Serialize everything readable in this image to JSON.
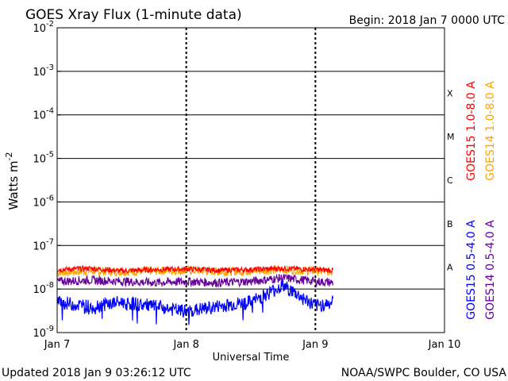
{
  "chart_data": {
    "type": "line",
    "title": "GOES Xray Flux (1-minute data)",
    "begin_label": "Begin:  2018 Jan 7 0000 UTC",
    "updated_label": "Updated 2018 Jan  9 03:26:12 UTC",
    "credit_label": "NOAA/SWPC Boulder, CO USA",
    "xlabel": "Universal Time",
    "ylabel": "Watts m",
    "ylabel_exponent": "-2",
    "y_scale": "log",
    "ylim_exponent": [
      -9,
      -2
    ],
    "y_tick_exponents": [
      "-9",
      "-8",
      "-7",
      "-6",
      "-5",
      "-4",
      "-3",
      "-2"
    ],
    "y_tick_base": "10",
    "x_ticks": [
      {
        "label": "Jan 7",
        "day": 0
      },
      {
        "label": "Jan 8",
        "day": 1
      },
      {
        "label": "Jan 9",
        "day": 2
      },
      {
        "label": "Jan 10",
        "day": 3
      }
    ],
    "xlim_days": [
      0,
      3
    ],
    "grid": "horizontal lines at each decade; dashed vertical lines at day boundaries",
    "flare_classes": [
      {
        "label": "A",
        "exponent": -8
      },
      {
        "label": "B",
        "exponent": -7
      },
      {
        "label": "C",
        "exponent": -6
      },
      {
        "label": "M",
        "exponent": -5
      },
      {
        "label": "X",
        "exponent": -4
      }
    ],
    "legend_placement": "right side, vertical",
    "series": [
      {
        "name": "GOES15 1.0-8.0 A",
        "color": "#ff0000",
        "x_days": [
          0,
          0.25,
          0.5,
          0.75,
          1.0,
          1.25,
          1.5,
          1.75,
          2.0,
          2.14
        ],
        "y": [
          2.8e-08,
          3e-08,
          2.6e-08,
          2.8e-08,
          2.9e-08,
          2.7e-08,
          2.8e-08,
          3e-08,
          2.8e-08,
          2.7e-08
        ]
      },
      {
        "name": "GOES14 1.0-8.0 A",
        "color": "#ffa500",
        "x_days": [
          0,
          0.25,
          0.5,
          0.75,
          1.0,
          1.25,
          1.5,
          1.75,
          2.0,
          2.14
        ],
        "y": [
          2.4e-08,
          2.6e-08,
          2.5e-08,
          2.6e-08,
          2.7e-08,
          2.5e-08,
          2.6e-08,
          2.8e-08,
          2.6e-08,
          2.5e-08
        ]
      },
      {
        "name": "GOES15 0.5-4.0 A",
        "color": "#0000ff",
        "x_days": [
          0,
          0.25,
          0.5,
          0.75,
          1.0,
          1.25,
          1.5,
          1.75,
          2.0,
          2.14
        ],
        "y": [
          5e-09,
          4e-09,
          5e-09,
          4e-09,
          3e-09,
          4e-09,
          5e-09,
          1.2e-08,
          4e-09,
          5e-09
        ]
      },
      {
        "name": "GOES14 0.5-4.0 A",
        "color": "#660099",
        "x_days": [
          0,
          0.25,
          0.5,
          0.75,
          1.0,
          1.25,
          1.5,
          1.75,
          2.0,
          2.14
        ],
        "y": [
          1.5e-08,
          1.6e-08,
          1.5e-08,
          1.4e-08,
          1.5e-08,
          1.4e-08,
          1.5e-08,
          1.8e-08,
          1.5e-08,
          1.4e-08
        ]
      }
    ]
  }
}
